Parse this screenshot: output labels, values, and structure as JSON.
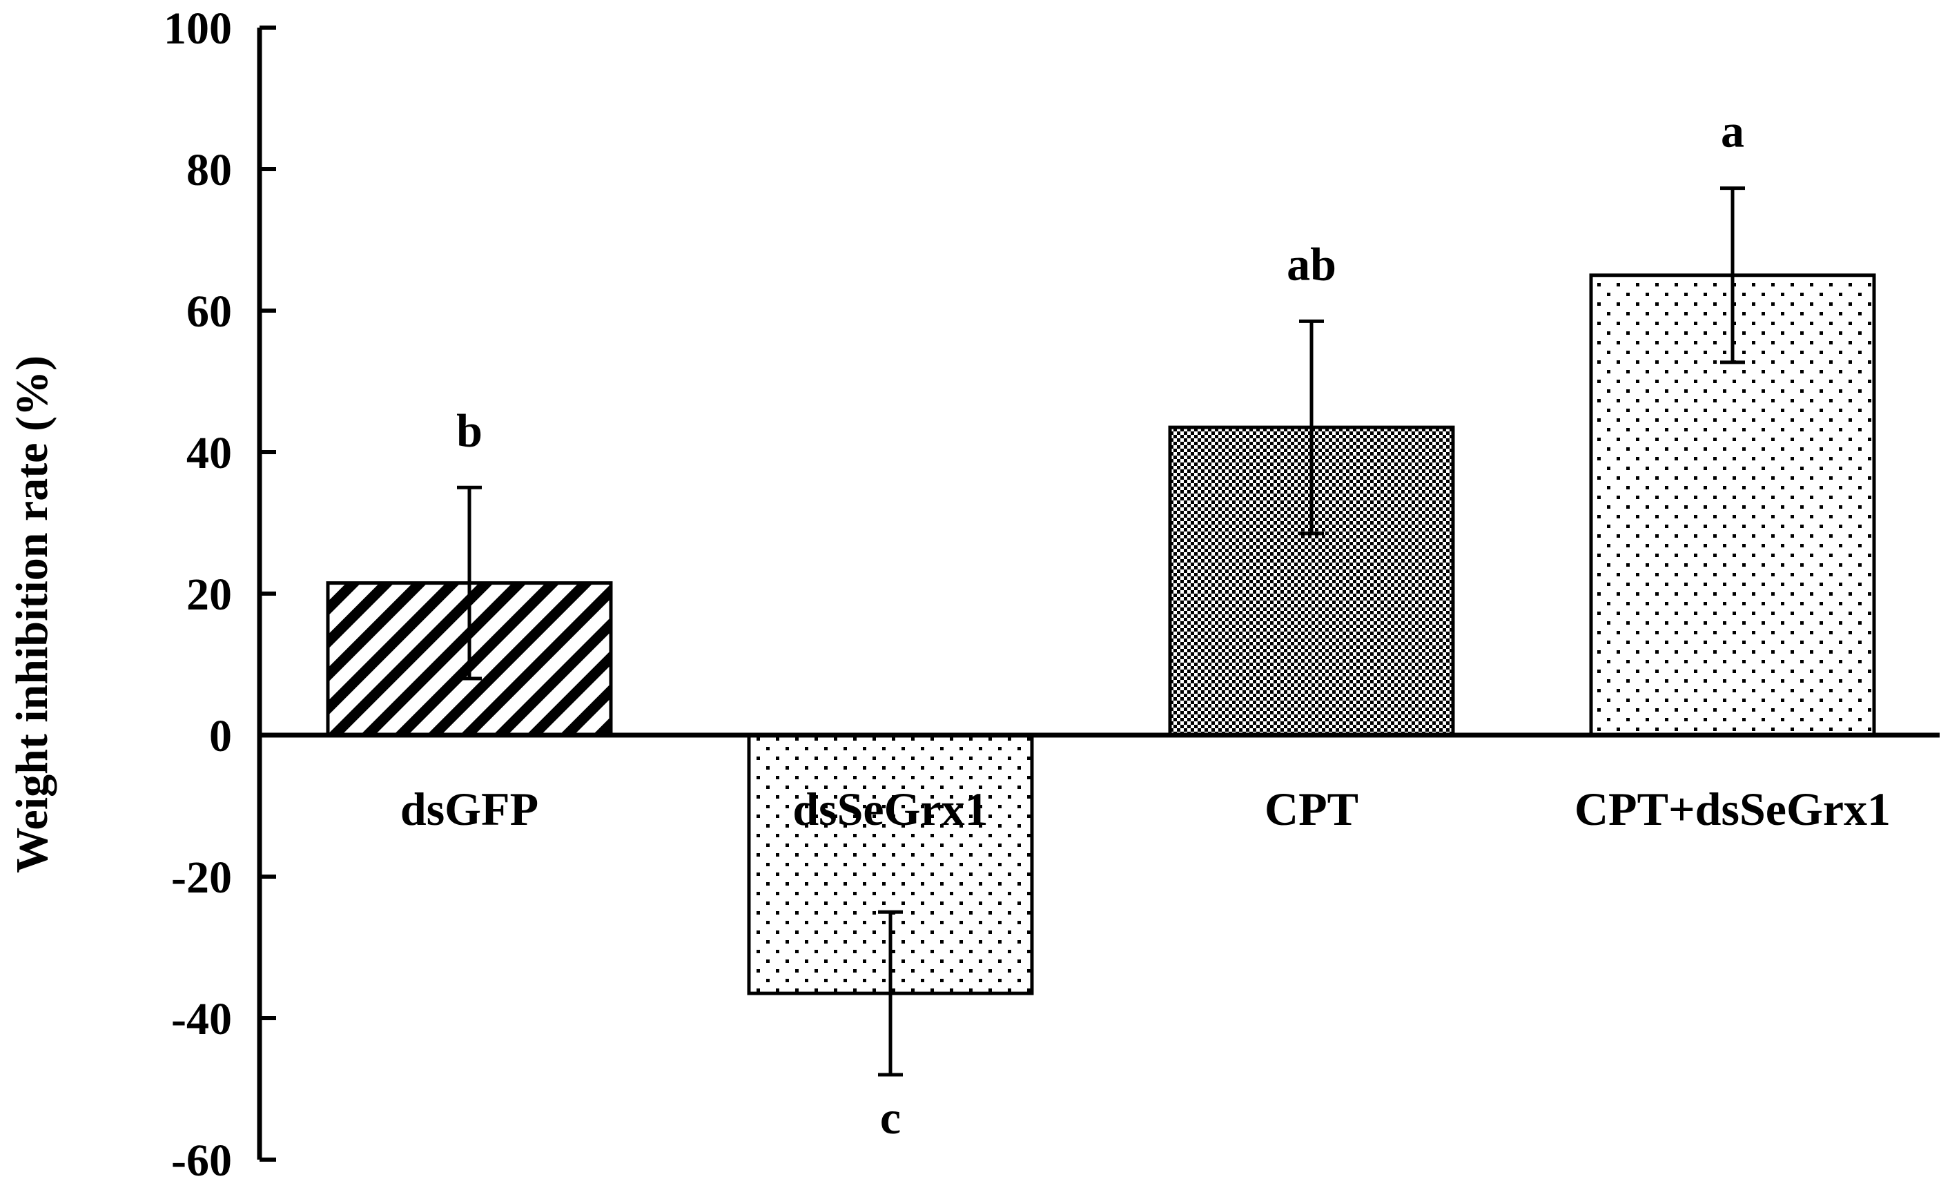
{
  "chart_data": {
    "type": "bar",
    "ylabel": "Weight inhibition rate (%)",
    "xlabel": "",
    "ylim": [
      -60,
      100
    ],
    "yticks": [
      -60,
      -40,
      -20,
      0,
      20,
      40,
      60,
      80,
      100
    ],
    "grid": false,
    "categories": [
      "dsGFP",
      "dsSeGrx1",
      "CPT",
      "CPT+dsSeGrx1"
    ],
    "values": [
      21.5,
      -36.5,
      43.5,
      65
    ],
    "error": [
      13.5,
      11.5,
      15,
      12.3
    ],
    "significance_letters": [
      "b",
      "c",
      "ab",
      "a"
    ],
    "fill_patterns": [
      "diagonal-stripes",
      "sparse-dots",
      "dense-checker",
      "sparse-dots"
    ]
  }
}
